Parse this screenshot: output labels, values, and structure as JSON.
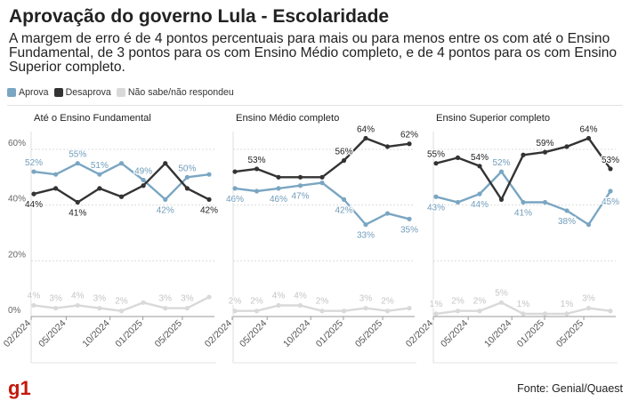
{
  "title": "Aprovação do governo Lula - Escolaridade",
  "subtitle": "A margem de erro é de 4 pontos percentuais para mais ou para menos entre os com até o Ensino Fundamental, de 3 pontos para os com Ensino Médio completo, e de 4 pontos para os com Ensino Superior completo.",
  "legend": [
    {
      "label": "Aprova",
      "color": "#7aa6c2"
    },
    {
      "label": "Desaprova",
      "color": "#333333"
    },
    {
      "label": "Não sabe/não respondeu",
      "color": "#d9d9d9"
    }
  ],
  "logo": "g1",
  "source": "Fonte: Genial/Quaest",
  "chart_data": [
    {
      "type": "line",
      "title": "Até o Ensino Fundamental",
      "yticks": [
        "0%",
        "20%",
        "40%",
        "60%"
      ],
      "ylim": [
        0,
        66
      ],
      "xticks": [
        "02/2024",
        "05/2024",
        "10/2024",
        "01/2025",
        "05/2025"
      ],
      "series": [
        {
          "name": "Aprova",
          "color": "#7aa6c2",
          "values": [
            52,
            51,
            55,
            51,
            55,
            49,
            42,
            50,
            51
          ],
          "labels": [
            "52%",
            "",
            "55%",
            "51%",
            "",
            "49%",
            "42%",
            "50%",
            ""
          ]
        },
        {
          "name": "Desaprova",
          "color": "#333333",
          "values": [
            44,
            46,
            41,
            46,
            43,
            47,
            55,
            46,
            42
          ],
          "labels": [
            "44%",
            "",
            "41%",
            "",
            "",
            "",
            "",
            "",
            "42%"
          ]
        },
        {
          "name": "Não sabe/não respondeu",
          "color": "#d9d9d9",
          "values": [
            4,
            3,
            4,
            3,
            2,
            5,
            3,
            3,
            7
          ],
          "labels": [
            "4%",
            "3%",
            "4%",
            "3%",
            "2%",
            "",
            "3%",
            "3%",
            ""
          ]
        }
      ]
    },
    {
      "type": "line",
      "title": "Ensino Médio completo",
      "yticks": [
        "0%",
        "20%",
        "40%",
        "60%"
      ],
      "ylim": [
        0,
        66
      ],
      "xticks": [
        "02/2024",
        "05/2024",
        "10/2024",
        "01/2025",
        "05/2025"
      ],
      "series": [
        {
          "name": "Aprova",
          "color": "#7aa6c2",
          "values": [
            46,
            45,
            46,
            47,
            48,
            42,
            33,
            37,
            35
          ],
          "labels": [
            "46%",
            "",
            "46%",
            "47%",
            "",
            "42%",
            "33%",
            "",
            "35%"
          ]
        },
        {
          "name": "Desaprova",
          "color": "#333333",
          "values": [
            52,
            53,
            50,
            50,
            50,
            56,
            64,
            61,
            62
          ],
          "labels": [
            "",
            "53%",
            "",
            "",
            "",
            "56%",
            "64%",
            "",
            "62%"
          ]
        },
        {
          "name": "Não sabe/não respondeu",
          "color": "#d9d9d9",
          "values": [
            2,
            2,
            4,
            4,
            2,
            2,
            3,
            2,
            3
          ],
          "labels": [
            "2%",
            "2%",
            "4%",
            "4%",
            "2%",
            "",
            "3%",
            "2%",
            ""
          ]
        }
      ]
    },
    {
      "type": "line",
      "title": "Ensino Superior completo",
      "yticks": [
        "0%",
        "20%",
        "40%",
        "60%"
      ],
      "ylim": [
        0,
        66
      ],
      "xticks": [
        "02/2024",
        "05/2024",
        "10/2024",
        "01/2025",
        "05/2025"
      ],
      "series": [
        {
          "name": "Aprova",
          "color": "#7aa6c2",
          "values": [
            43,
            41,
            44,
            52,
            41,
            41,
            38,
            33,
            45
          ],
          "labels": [
            "43%",
            "",
            "44%",
            "52%",
            "41%",
            "",
            "38%",
            "",
            "45%"
          ]
        },
        {
          "name": "Desaprova",
          "color": "#333333",
          "values": [
            55,
            57,
            54,
            42,
            58,
            59,
            61,
            64,
            53
          ],
          "labels": [
            "55%",
            "",
            "54%",
            "",
            "",
            "59%",
            "",
            "64%",
            "53%"
          ]
        },
        {
          "name": "Não sabe/não respondeu",
          "color": "#d9d9d9",
          "values": [
            1,
            2,
            2,
            5,
            1,
            1,
            1,
            3,
            2
          ],
          "labels": [
            "1%",
            "2%",
            "2%",
            "5%",
            "1%",
            "",
            "1%",
            "3%",
            ""
          ]
        }
      ]
    }
  ]
}
